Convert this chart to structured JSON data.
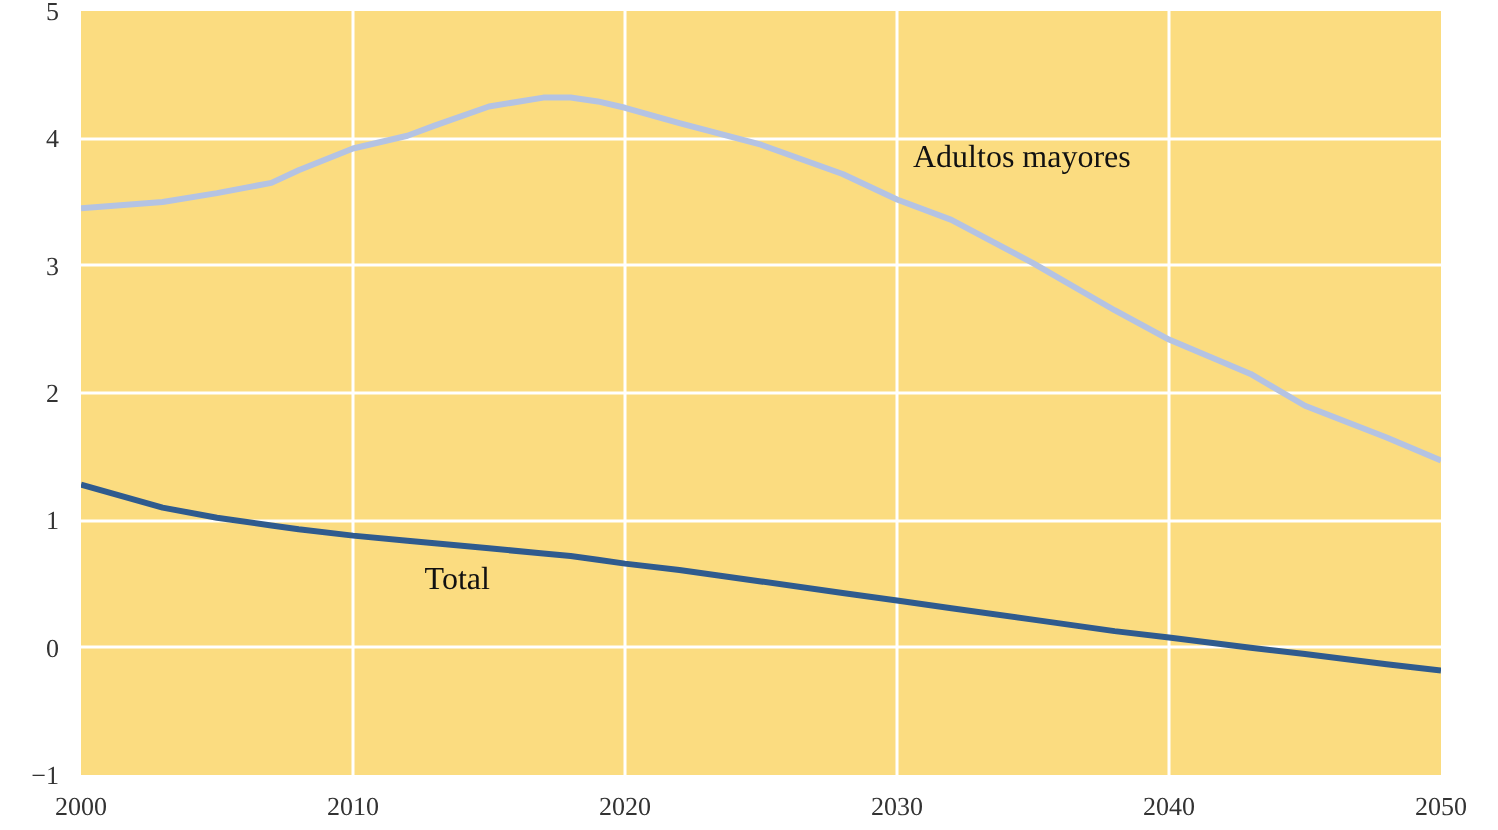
{
  "chart_data": {
    "type": "line",
    "x": [
      2000,
      2003,
      2005,
      2007,
      2008,
      2010,
      2012,
      2013,
      2015,
      2017,
      2018,
      2019,
      2020,
      2022,
      2025,
      2028,
      2030,
      2032,
      2035,
      2038,
      2040,
      2043,
      2045,
      2048,
      2050
    ],
    "series": [
      {
        "name": "Adultos mayores",
        "color": "#b4c3e3",
        "values": [
          3.45,
          3.5,
          3.57,
          3.65,
          3.75,
          3.92,
          4.02,
          4.1,
          4.25,
          4.32,
          4.32,
          4.29,
          4.24,
          4.12,
          3.95,
          3.72,
          3.52,
          3.36,
          3.02,
          2.65,
          2.42,
          2.15,
          1.9,
          1.65,
          1.47
        ]
      },
      {
        "name": "Total",
        "color": "#2f5b8e",
        "values": [
          1.28,
          1.1,
          1.02,
          0.96,
          0.93,
          0.88,
          0.84,
          0.82,
          0.78,
          0.74,
          0.72,
          0.69,
          0.66,
          0.61,
          0.52,
          0.43,
          0.37,
          0.31,
          0.22,
          0.13,
          0.08,
          0.0,
          -0.05,
          -0.13,
          -0.18
        ]
      }
    ],
    "xlim": [
      2000,
      2050
    ],
    "xticks": [
      2000,
      2010,
      2020,
      2030,
      2040,
      2050
    ],
    "ylim": [
      -1,
      5
    ],
    "yticks": [
      -1,
      0,
      1,
      2,
      3,
      4,
      5
    ],
    "grid": true,
    "marker": "none",
    "line_style": "solid"
  }
}
